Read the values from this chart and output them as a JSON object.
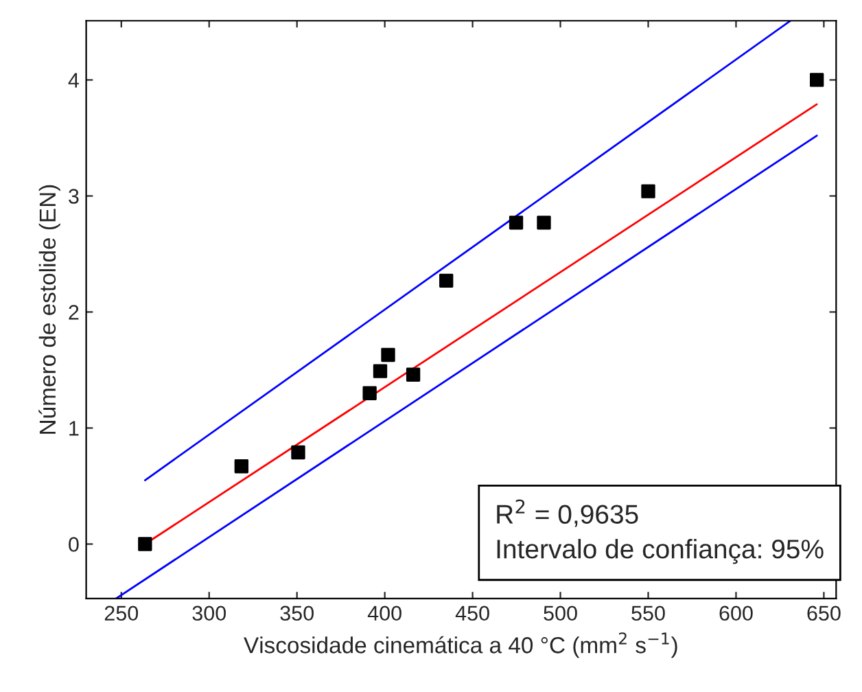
{
  "chart_data": {
    "type": "scatter",
    "xlabel": "Viscosidade cinemática a 40 °C (mm$^{2}$ s$^{−1}$)",
    "ylabel": "Número de estolide (EN)",
    "xlim": [
      230,
      657
    ],
    "ylim": [
      -0.47,
      4.51
    ],
    "xticks": [
      250,
      300,
      350,
      400,
      450,
      500,
      550,
      600,
      650
    ],
    "yticks": [
      0,
      1,
      2,
      3,
      4
    ],
    "grid": false,
    "series": [
      {
        "marker": "square",
        "color": "#000000",
        "x": [
          263.5,
          318.4,
          350.7,
          391.4,
          397.4,
          401.9,
          416.2,
          435,
          474.8,
          490.6,
          550,
          646
        ],
        "values": [
          0,
          0.67,
          0.79,
          1.3,
          1.49,
          1.63,
          1.46,
          2.27,
          2.77,
          2.77,
          3.04,
          4.0
        ]
      },
      {
        "type": "line",
        "color": "#ff0000",
        "x": [
          263.5,
          646
        ],
        "values": [
          0,
          3.79
        ]
      },
      {
        "type": "line",
        "color": "#0000ff",
        "x": [
          263.5,
          631
        ],
        "values": [
          0.55,
          4.51
        ]
      },
      {
        "type": "line",
        "color": "#0000ff",
        "x": [
          247,
          646
        ],
        "values": [
          -0.47,
          3.52
        ]
      }
    ],
    "annotations": [
      "R$^{2}$ = 0,9635\nIntervalo de confiança: 95%"
    ]
  }
}
